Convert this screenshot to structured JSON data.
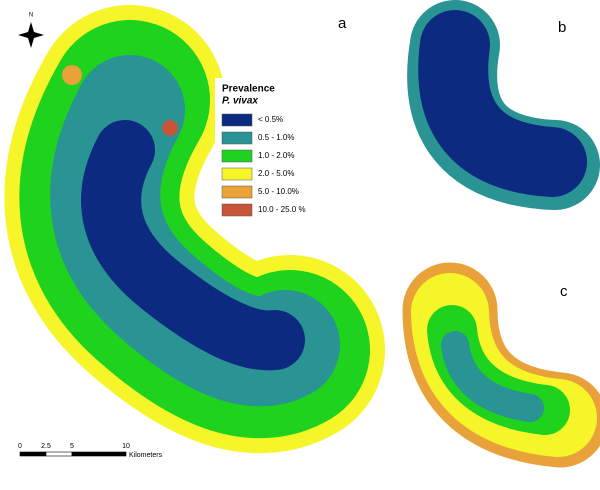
{
  "north_arrow": {
    "label": "N"
  },
  "panels": [
    {
      "label": "a"
    },
    {
      "label": "b"
    },
    {
      "label": "c"
    }
  ],
  "legend": {
    "title": "Prevalence",
    "subtitle": "P. vivax",
    "items": [
      {
        "label": "< 0.5%",
        "color": "#0b2a80"
      },
      {
        "label": "0.5 - 1.0%",
        "color": "#2a9393"
      },
      {
        "label": "1.0 - 2.0%",
        "color": "#1ed21e"
      },
      {
        "label": "2.0 - 5.0%",
        "color": "#f5f52a"
      },
      {
        "label": "5.0 - 10.0%",
        "color": "#e9a23a"
      },
      {
        "label": "10.0 - 25.0 %",
        "color": "#c8553a"
      }
    ]
  },
  "scale_bar": {
    "ticks": [
      "0",
      "2.5",
      "5",
      "10"
    ],
    "unit": "Kilometers"
  }
}
